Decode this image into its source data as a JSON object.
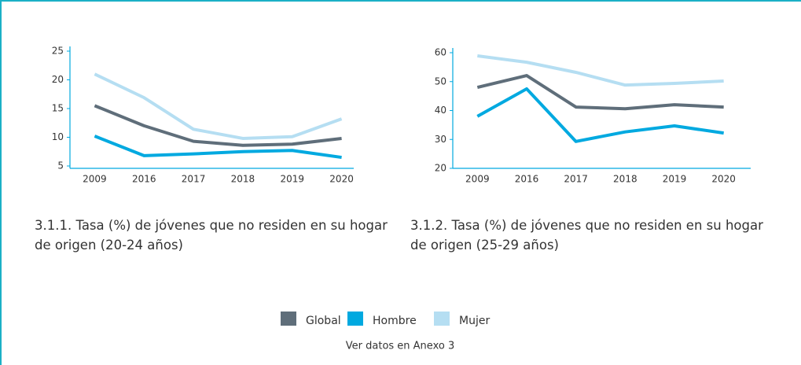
{
  "chart_data": [
    {
      "type": "line",
      "title": "3.1.1. Tasa (%) de jóvenes que no residen en su hogar de origen (20-24 años)",
      "categories": [
        "2009",
        "2016",
        "2017",
        "2018",
        "2019",
        "2020"
      ],
      "series": [
        {
          "name": "Global",
          "color": "#5f6e7a",
          "values": [
            15.5,
            12,
            9.3,
            8.6,
            8.8,
            9.8
          ]
        },
        {
          "name": "Hombre",
          "color": "#00a9e0",
          "values": [
            10.2,
            6.8,
            7.1,
            7.5,
            7.7,
            6.5
          ]
        },
        {
          "name": "Mujer",
          "color": "#b5def2",
          "values": [
            21,
            16.9,
            11.4,
            9.8,
            10.1,
            13.2
          ]
        }
      ],
      "ylim": [
        5,
        25
      ],
      "yticks": [
        5,
        10,
        15,
        20,
        25
      ]
    },
    {
      "type": "line",
      "title": "3.1.2. Tasa (%) de jóvenes que no residen en su hogar de origen (25-29 años)",
      "categories": [
        "2009",
        "2016",
        "2017",
        "2018",
        "2019",
        "2020"
      ],
      "series": [
        {
          "name": "Global",
          "color": "#5f6e7a",
          "values": [
            48,
            52.1,
            41.2,
            40.6,
            42,
            41.2
          ]
        },
        {
          "name": "Hombre",
          "color": "#00a9e0",
          "values": [
            38,
            47.5,
            29.3,
            32.6,
            34.7,
            32.2
          ]
        },
        {
          "name": "Mujer",
          "color": "#b5def2",
          "values": [
            58.9,
            56.7,
            53.2,
            48.8,
            49.4,
            50.2
          ]
        }
      ],
      "ylim": [
        20,
        60
      ],
      "yticks": [
        20,
        30,
        40,
        50,
        60
      ]
    }
  ],
  "footnote": "Ver datos en Anexo 3"
}
